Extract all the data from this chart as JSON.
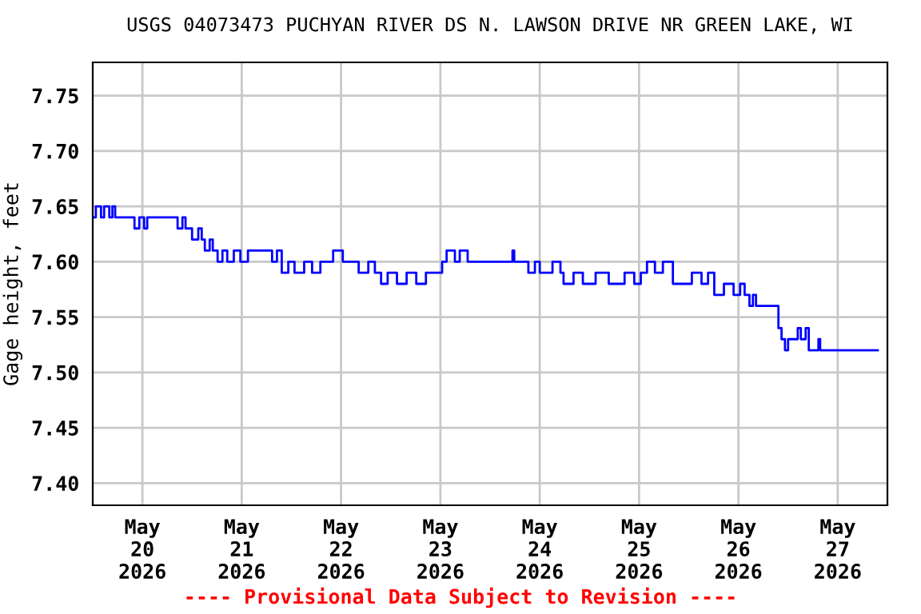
{
  "chart_data": {
    "type": "step",
    "title": "USGS 04073473 PUCHYAN RIVER DS N. LAWSON DRIVE NR GREEN LAKE, WI",
    "ylabel": "Gage height, feet",
    "annotations": [
      "---- Provisional Data Subject to Revision ----"
    ],
    "x": [
      "2026-05-19T12:00",
      "2026-05-19T12:45",
      "2026-05-19T14:00",
      "2026-05-19T14:45",
      "2026-05-19T16:00",
      "2026-05-19T16:45",
      "2026-05-19T17:25",
      "2026-05-19T21:40",
      "2026-05-19T22:05",
      "2026-05-19T23:15",
      "2026-05-20T00:25",
      "2026-05-20T01:10",
      "2026-05-20T08:10",
      "2026-05-20T08:30",
      "2026-05-20T09:40",
      "2026-05-20T10:25",
      "2026-05-20T12:00",
      "2026-05-20T13:30",
      "2026-05-20T14:20",
      "2026-05-20T15:05",
      "2026-05-20T16:15",
      "2026-05-20T17:00",
      "2026-05-20T18:10",
      "2026-05-20T19:20",
      "2026-05-20T20:30",
      "2026-05-20T22:05",
      "2026-05-20T23:40",
      "2026-05-21T01:30",
      "2026-05-21T05:25",
      "2026-05-21T07:20",
      "2026-05-21T08:30",
      "2026-05-21T09:40",
      "2026-05-21T11:15",
      "2026-05-21T12:45",
      "2026-05-21T15:05",
      "2026-05-21T17:00",
      "2026-05-21T19:00",
      "2026-05-21T22:05",
      "2026-05-22T00:25",
      "2026-05-22T04:15",
      "2026-05-22T06:35",
      "2026-05-22T08:10",
      "2026-05-22T09:40",
      "2026-05-22T11:15",
      "2026-05-22T13:30",
      "2026-05-22T15:50",
      "2026-05-22T18:10",
      "2026-05-22T20:30",
      "2026-05-23T00:25",
      "2026-05-23T01:30",
      "2026-05-23T03:30",
      "2026-05-23T04:40",
      "2026-05-23T06:35",
      "2026-05-23T17:25",
      "2026-05-23T17:50",
      "2026-05-23T21:15",
      "2026-05-23T22:50",
      "2026-05-24T00:00",
      "2026-05-24T03:05",
      "2026-05-24T05:00",
      "2026-05-24T05:45",
      "2026-05-24T08:10",
      "2026-05-24T10:25",
      "2026-05-24T13:30",
      "2026-05-24T16:40",
      "2026-05-24T20:30",
      "2026-05-24T22:50",
      "2026-05-25T00:25",
      "2026-05-25T01:55",
      "2026-05-25T03:50",
      "2026-05-25T05:45",
      "2026-05-25T08:10",
      "2026-05-25T12:45",
      "2026-05-25T15:05",
      "2026-05-25T16:40",
      "2026-05-25T18:10",
      "2026-05-25T20:30",
      "2026-05-25T22:50",
      "2026-05-26T00:25",
      "2026-05-26T01:30",
      "2026-05-26T02:40",
      "2026-05-26T03:30",
      "2026-05-26T04:15",
      "2026-05-26T09:40",
      "2026-05-26T10:25",
      "2026-05-26T11:15",
      "2026-05-26T12:00",
      "2026-05-26T14:20",
      "2026-05-26T15:05",
      "2026-05-26T16:15",
      "2026-05-26T17:00",
      "2026-05-26T19:20",
      "2026-05-26T19:45",
      "2026-05-27T09:40"
    ],
    "series": [
      {
        "color": "#0000ff",
        "values": [
          7.64,
          7.65,
          7.64,
          7.65,
          7.64,
          7.65,
          7.64,
          7.64,
          7.63,
          7.64,
          7.63,
          7.64,
          7.64,
          7.63,
          7.64,
          7.63,
          7.62,
          7.63,
          7.62,
          7.61,
          7.62,
          7.61,
          7.6,
          7.61,
          7.6,
          7.61,
          7.6,
          7.61,
          7.61,
          7.6,
          7.61,
          7.59,
          7.6,
          7.59,
          7.6,
          7.59,
          7.6,
          7.61,
          7.6,
          7.59,
          7.6,
          7.59,
          7.58,
          7.59,
          7.58,
          7.59,
          7.58,
          7.59,
          7.6,
          7.61,
          7.6,
          7.61,
          7.6,
          7.61,
          7.6,
          7.59,
          7.6,
          7.59,
          7.6,
          7.59,
          7.58,
          7.59,
          7.58,
          7.59,
          7.58,
          7.59,
          7.58,
          7.59,
          7.6,
          7.59,
          7.6,
          7.58,
          7.59,
          7.58,
          7.59,
          7.57,
          7.58,
          7.57,
          7.58,
          7.57,
          7.56,
          7.57,
          7.56,
          7.54,
          7.53,
          7.52,
          7.53,
          7.54,
          7.53,
          7.54,
          7.52,
          7.53,
          7.52,
          7.52
        ]
      }
    ],
    "xlim": [
      "2026-05-19T12:00",
      "2026-05-27T12:00"
    ],
    "xticks": [
      {
        "value": "2026-05-20",
        "label": "May\n20\n2026"
      },
      {
        "value": "2026-05-21",
        "label": "May\n21\n2026"
      },
      {
        "value": "2026-05-22",
        "label": "May\n22\n2026"
      },
      {
        "value": "2026-05-23",
        "label": "May\n23\n2026"
      },
      {
        "value": "2026-05-24",
        "label": "May\n24\n2026"
      },
      {
        "value": "2026-05-25",
        "label": "May\n25\n2026"
      },
      {
        "value": "2026-05-26",
        "label": "May\n26\n2026"
      },
      {
        "value": "2026-05-27",
        "label": "May\n27\n2026"
      }
    ],
    "ylim": [
      7.38,
      7.78
    ],
    "yticks": [
      {
        "value": 7.4,
        "label": "7.40"
      },
      {
        "value": 7.45,
        "label": "7.45"
      },
      {
        "value": 7.5,
        "label": "7.50"
      },
      {
        "value": 7.55,
        "label": "7.55"
      },
      {
        "value": 7.6,
        "label": "7.60"
      },
      {
        "value": 7.65,
        "label": "7.65"
      },
      {
        "value": 7.7,
        "label": "7.70"
      },
      {
        "value": 7.75,
        "label": "7.75"
      }
    ],
    "grid": true
  }
}
